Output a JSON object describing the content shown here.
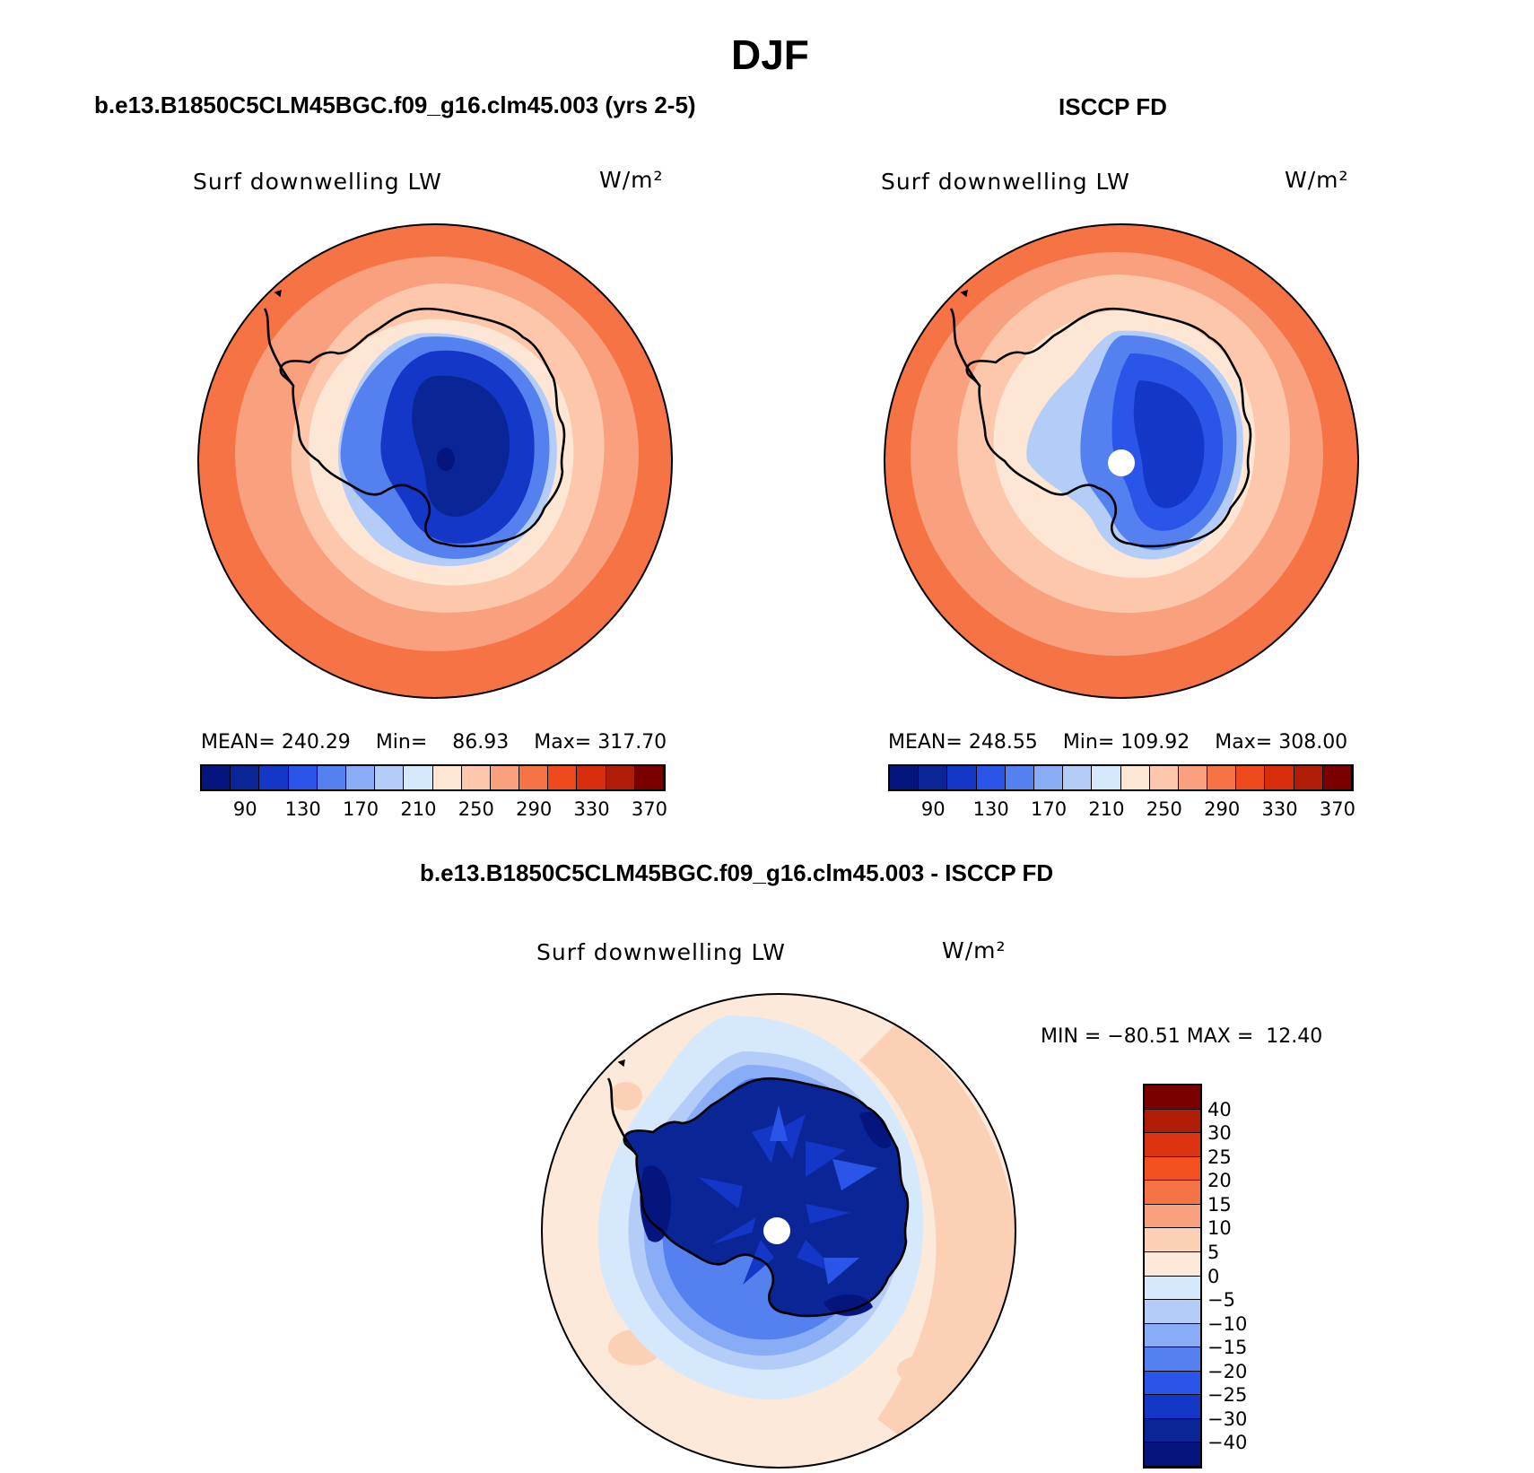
{
  "figure": {
    "title": "DJF",
    "accent_colors": {
      "deep_blue": "#05157e",
      "light_blue": "#cfe3fa",
      "cream": "#fde9d9",
      "orange": "#f56b3a",
      "dark_red": "#7a0000"
    }
  },
  "panels": [
    {
      "id": "model",
      "header": "b.e13.B1850C5CLM45BGC.f09_g16.clm45.003 (yrs 2-5)",
      "variable_label": "Surf downwelling LW",
      "units_label": "W/m²",
      "stats": {
        "mean_label": "MEAN=",
        "mean": "240.29",
        "min_label": "Min=",
        "min": "86.93",
        "max_label": "Max=",
        "max": "317.70"
      },
      "colorbar_ticks": [
        "90",
        "130",
        "170",
        "210",
        "250",
        "290",
        "330",
        "370"
      ],
      "has_pole_hole": false
    },
    {
      "id": "obs",
      "header": "ISCCP FD",
      "variable_label": "Surf downwelling LW",
      "units_label": "W/m²",
      "stats": {
        "mean_label": "MEAN=",
        "mean": "248.55",
        "min_label": "Min=",
        "min": "109.92",
        "max_label": "Max=",
        "max": "308.00"
      },
      "colorbar_ticks": [
        "90",
        "130",
        "170",
        "210",
        "250",
        "290",
        "330",
        "370"
      ],
      "has_pole_hole": true
    },
    {
      "id": "diff",
      "header": "b.e13.B1850C5CLM45BGC.f09_g16.clm45.003 - ISCCP FD",
      "variable_label": "Surf downwelling LW",
      "units_label": "W/m²",
      "stats_text": "MIN = −80.51 MAX =  12.40",
      "colorbar_ticks": [
        "40",
        "30",
        "25",
        "20",
        "15",
        "10",
        "5",
        "0",
        "−5",
        "−10",
        "−15",
        "−20",
        "−25",
        "−30",
        "−40"
      ],
      "has_pole_hole": true
    }
  ],
  "colorbars": {
    "absolute_colors": [
      "#05157e",
      "#0a2596",
      "#1437c8",
      "#2a55e8",
      "#5580f0",
      "#88acf6",
      "#b4cdf8",
      "#d6e8fb",
      "#fde6d4",
      "#fcc7ab",
      "#f9a07e",
      "#f67346",
      "#ee4a1e",
      "#d82e0e",
      "#b01c08",
      "#7a0000"
    ],
    "difference_colors": [
      "#05157e",
      "#0a2596",
      "#1437c8",
      "#2a55e8",
      "#5580f0",
      "#88acf6",
      "#b4cdf8",
      "#d6e8fb",
      "#fde9d9",
      "#fcd0b5",
      "#f9a07e",
      "#f67346",
      "#f2501e",
      "#dc3410",
      "#b01c08",
      "#7a0000"
    ]
  }
}
